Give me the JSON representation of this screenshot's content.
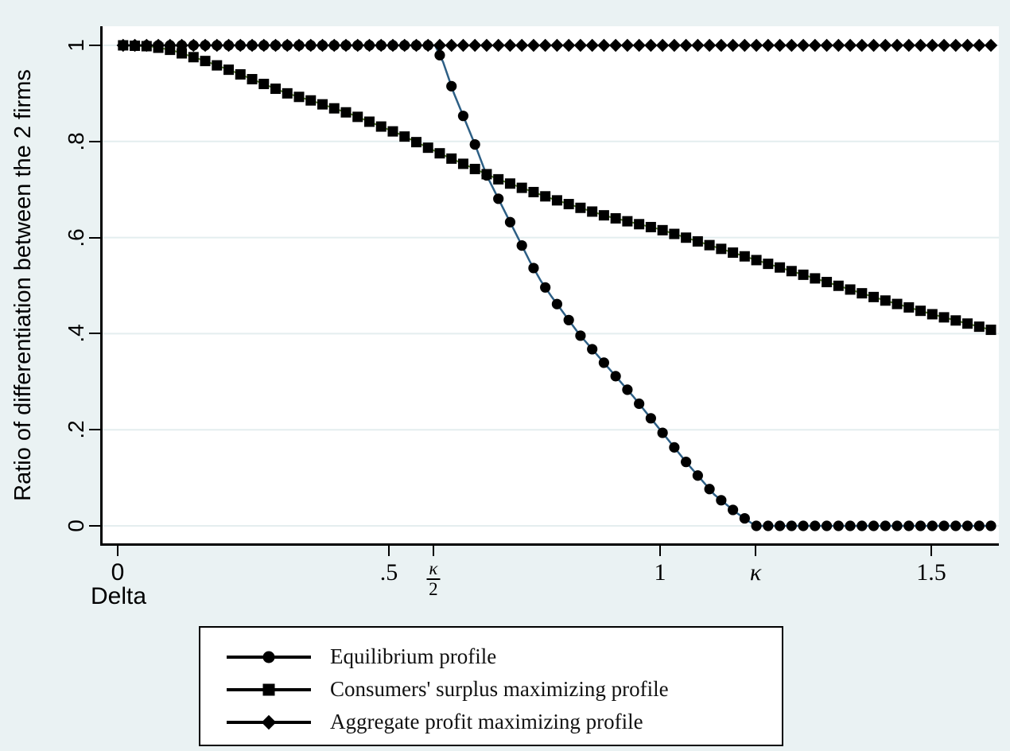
{
  "figure": {
    "background_color": "#eaf2f3",
    "plot_background": "#ffffff",
    "grid_color": "#e4eeef",
    "axis_color": "#000000"
  },
  "axes": {
    "y_title": "Ratio of differentiation between the 2 firms",
    "x_title": "Delta",
    "y_ticks": [
      {
        "label": "0",
        "value": 0
      },
      {
        "label": ".2",
        "value": 0.2
      },
      {
        "label": ".4",
        "value": 0.4
      },
      {
        "label": ".6",
        "value": 0.6
      },
      {
        "label": ".8",
        "value": 0.8
      },
      {
        "label": "1",
        "value": 1
      }
    ],
    "x_ticks": [
      {
        "label": "0",
        "value": 0,
        "style": "sans"
      },
      {
        "label": ".5",
        "value": 0.5,
        "style": "serif"
      },
      {
        "label": "κ/2",
        "value": 0.582,
        "style": "fraction",
        "num": "κ",
        "den": "2"
      },
      {
        "label": "1",
        "value": 1,
        "style": "serif"
      },
      {
        "label": "κ",
        "value": 1.176,
        "style": "kappa"
      },
      {
        "label": "1.5",
        "value": 1.5,
        "style": "serif"
      }
    ]
  },
  "chart_data": {
    "type": "line",
    "title": "",
    "xlabel": "Delta",
    "ylabel": "Ratio of differentiation between the 2 firms",
    "xlim": [
      -0.03,
      1.635
    ],
    "ylim": [
      -0.04,
      1.04
    ],
    "grid": "horizontal",
    "legend_position": "bottom",
    "marker_x_start": 0.01,
    "marker_x_end": 1.61,
    "n_markers": 75,
    "series": [
      {
        "name": "Equilibrium profile",
        "marker": "circle",
        "marker_color": "#000000",
        "line_color": "#2d5f85",
        "line_width": 2.5,
        "anchors": [
          [
            0.01,
            1.0
          ],
          [
            0.585,
            1.0
          ],
          [
            0.6,
            0.965
          ],
          [
            0.62,
            0.9
          ],
          [
            0.64,
            0.845
          ],
          [
            0.66,
            0.79
          ],
          [
            0.68,
            0.73
          ],
          [
            0.7,
            0.685
          ],
          [
            0.72,
            0.64
          ],
          [
            0.74,
            0.595
          ],
          [
            0.76,
            0.55
          ],
          [
            0.78,
            0.51
          ],
          [
            0.8,
            0.477
          ],
          [
            0.85,
            0.4
          ],
          [
            0.9,
            0.335
          ],
          [
            0.95,
            0.27
          ],
          [
            1.0,
            0.2
          ],
          [
            1.05,
            0.13
          ],
          [
            1.1,
            0.065
          ],
          [
            1.14,
            0.028
          ],
          [
            1.176,
            0.0
          ],
          [
            1.61,
            0.0
          ]
        ]
      },
      {
        "name": "Consumers' surplus maximizing profile",
        "marker": "square",
        "marker_color": "#000000",
        "line_color": "#4d7a22",
        "line_width": 2,
        "anchors": [
          [
            0.01,
            1.0
          ],
          [
            0.06,
            0.998
          ],
          [
            0.1,
            0.99
          ],
          [
            0.16,
            0.968
          ],
          [
            0.21,
            0.947
          ],
          [
            0.26,
            0.924
          ],
          [
            0.31,
            0.901
          ],
          [
            0.36,
            0.884
          ],
          [
            0.43,
            0.857
          ],
          [
            0.52,
            0.815
          ],
          [
            0.6,
            0.772
          ],
          [
            0.65,
            0.747
          ],
          [
            0.7,
            0.722
          ],
          [
            0.8,
            0.681
          ],
          [
            0.9,
            0.645
          ],
          [
            1.0,
            0.617
          ],
          [
            1.1,
            0.581
          ],
          [
            1.2,
            0.545
          ],
          [
            1.3,
            0.51
          ],
          [
            1.4,
            0.474
          ],
          [
            1.5,
            0.441
          ],
          [
            1.61,
            0.408
          ]
        ]
      },
      {
        "name": "Aggregate profit maximizing profile",
        "marker": "diamond",
        "marker_color": "#000000",
        "line_color": "#1a1a1a",
        "line_width": 2,
        "anchors": [
          [
            0.01,
            1.0
          ],
          [
            1.61,
            1.0
          ]
        ]
      }
    ]
  },
  "legend": {
    "border_color": "#000000",
    "background": "#ffffff"
  }
}
